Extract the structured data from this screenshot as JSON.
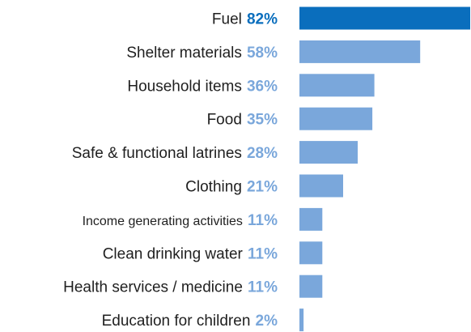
{
  "chart_data": {
    "type": "bar",
    "orientation": "horizontal",
    "categories": [
      "Fuel",
      "Shelter materials",
      "Household items",
      "Food",
      "Safe & functional latrines",
      "Clothing",
      "Income generating activities",
      "Clean drinking water",
      "Health services / medicine",
      "Education for children"
    ],
    "values": [
      82,
      58,
      36,
      35,
      28,
      21,
      11,
      11,
      11,
      2
    ],
    "value_labels": [
      "82%",
      "58%",
      "36%",
      "35%",
      "28%",
      "21%",
      "11%",
      "11%",
      "11%",
      "2%"
    ],
    "xlim": [
      0,
      82
    ],
    "grid": false,
    "legend": "none",
    "colors": {
      "highlight": "#0a6ebd",
      "default": "#7aa7db"
    },
    "highlight_index": 0
  }
}
